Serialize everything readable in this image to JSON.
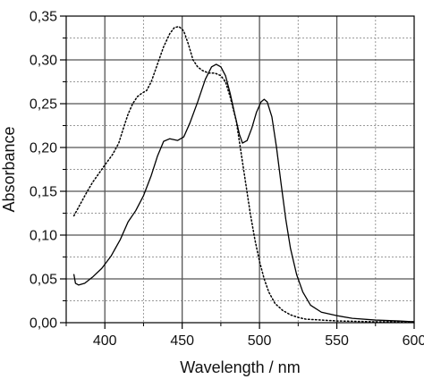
{
  "chart_data": {
    "type": "line",
    "title": "",
    "xlabel": "Wavelength / nm",
    "ylabel": "Absorbance",
    "xlim": [
      375,
      600
    ],
    "ylim": [
      0,
      0.35
    ],
    "x_ticks": [
      400,
      450,
      500,
      550,
      600
    ],
    "x_tick_labels": [
      "400",
      "450",
      "500",
      "550",
      "600"
    ],
    "y_ticks": [
      0,
      0.05,
      0.1,
      0.15,
      0.2,
      0.25,
      0.3,
      0.35
    ],
    "y_tick_labels": [
      "0,00",
      "0,05",
      "0,10",
      "0,15",
      "0,20",
      "0,25",
      "0,30",
      "0,35"
    ],
    "grid": true,
    "series": [
      {
        "style": "solid",
        "color": "#000000",
        "points": [
          [
            380,
            0.055
          ],
          [
            381,
            0.045
          ],
          [
            383,
            0.043
          ],
          [
            387,
            0.045
          ],
          [
            392,
            0.052
          ],
          [
            398,
            0.062
          ],
          [
            404,
            0.076
          ],
          [
            410,
            0.095
          ],
          [
            415,
            0.115
          ],
          [
            420,
            0.128
          ],
          [
            425,
            0.145
          ],
          [
            430,
            0.168
          ],
          [
            434,
            0.19
          ],
          [
            438,
            0.207
          ],
          [
            442,
            0.21
          ],
          [
            447,
            0.208
          ],
          [
            451,
            0.212
          ],
          [
            455,
            0.228
          ],
          [
            460,
            0.252
          ],
          [
            465,
            0.278
          ],
          [
            469,
            0.292
          ],
          [
            472,
            0.295
          ],
          [
            475,
            0.292
          ],
          [
            478,
            0.282
          ],
          [
            481,
            0.262
          ],
          [
            484,
            0.238
          ],
          [
            487,
            0.215
          ],
          [
            489,
            0.205
          ],
          [
            492,
            0.208
          ],
          [
            495,
            0.222
          ],
          [
            498,
            0.24
          ],
          [
            501,
            0.252
          ],
          [
            503,
            0.255
          ],
          [
            505,
            0.252
          ],
          [
            508,
            0.235
          ],
          [
            511,
            0.2
          ],
          [
            514,
            0.158
          ],
          [
            517,
            0.118
          ],
          [
            520,
            0.085
          ],
          [
            524,
            0.055
          ],
          [
            528,
            0.035
          ],
          [
            533,
            0.02
          ],
          [
            540,
            0.012
          ],
          [
            550,
            0.008
          ],
          [
            560,
            0.005
          ],
          [
            575,
            0.003
          ],
          [
            590,
            0.002
          ],
          [
            600,
            0.001
          ]
        ]
      },
      {
        "style": "dotted",
        "color": "#000000",
        "points": [
          [
            380,
            0.122
          ],
          [
            384,
            0.135
          ],
          [
            388,
            0.148
          ],
          [
            392,
            0.16
          ],
          [
            396,
            0.17
          ],
          [
            400,
            0.18
          ],
          [
            405,
            0.192
          ],
          [
            409,
            0.205
          ],
          [
            412,
            0.222
          ],
          [
            415,
            0.238
          ],
          [
            418,
            0.25
          ],
          [
            421,
            0.258
          ],
          [
            424,
            0.262
          ],
          [
            427,
            0.265
          ],
          [
            430,
            0.275
          ],
          [
            434,
            0.295
          ],
          [
            438,
            0.315
          ],
          [
            442,
            0.33
          ],
          [
            445,
            0.337
          ],
          [
            448,
            0.338
          ],
          [
            451,
            0.333
          ],
          [
            454,
            0.318
          ],
          [
            457,
            0.3
          ],
          [
            460,
            0.292
          ],
          [
            463,
            0.288
          ],
          [
            467,
            0.285
          ],
          [
            471,
            0.285
          ],
          [
            475,
            0.282
          ],
          [
            478,
            0.275
          ],
          [
            481,
            0.258
          ],
          [
            485,
            0.23
          ],
          [
            488,
            0.195
          ],
          [
            491,
            0.16
          ],
          [
            494,
            0.125
          ],
          [
            497,
            0.095
          ],
          [
            500,
            0.07
          ],
          [
            503,
            0.05
          ],
          [
            506,
            0.035
          ],
          [
            510,
            0.022
          ],
          [
            515,
            0.014
          ],
          [
            520,
            0.009
          ],
          [
            525,
            0.006
          ],
          [
            530,
            0.004
          ],
          [
            540,
            0.003
          ],
          [
            550,
            0.002
          ],
          [
            575,
            0.001
          ],
          [
            600,
            0.001
          ]
        ]
      }
    ]
  }
}
